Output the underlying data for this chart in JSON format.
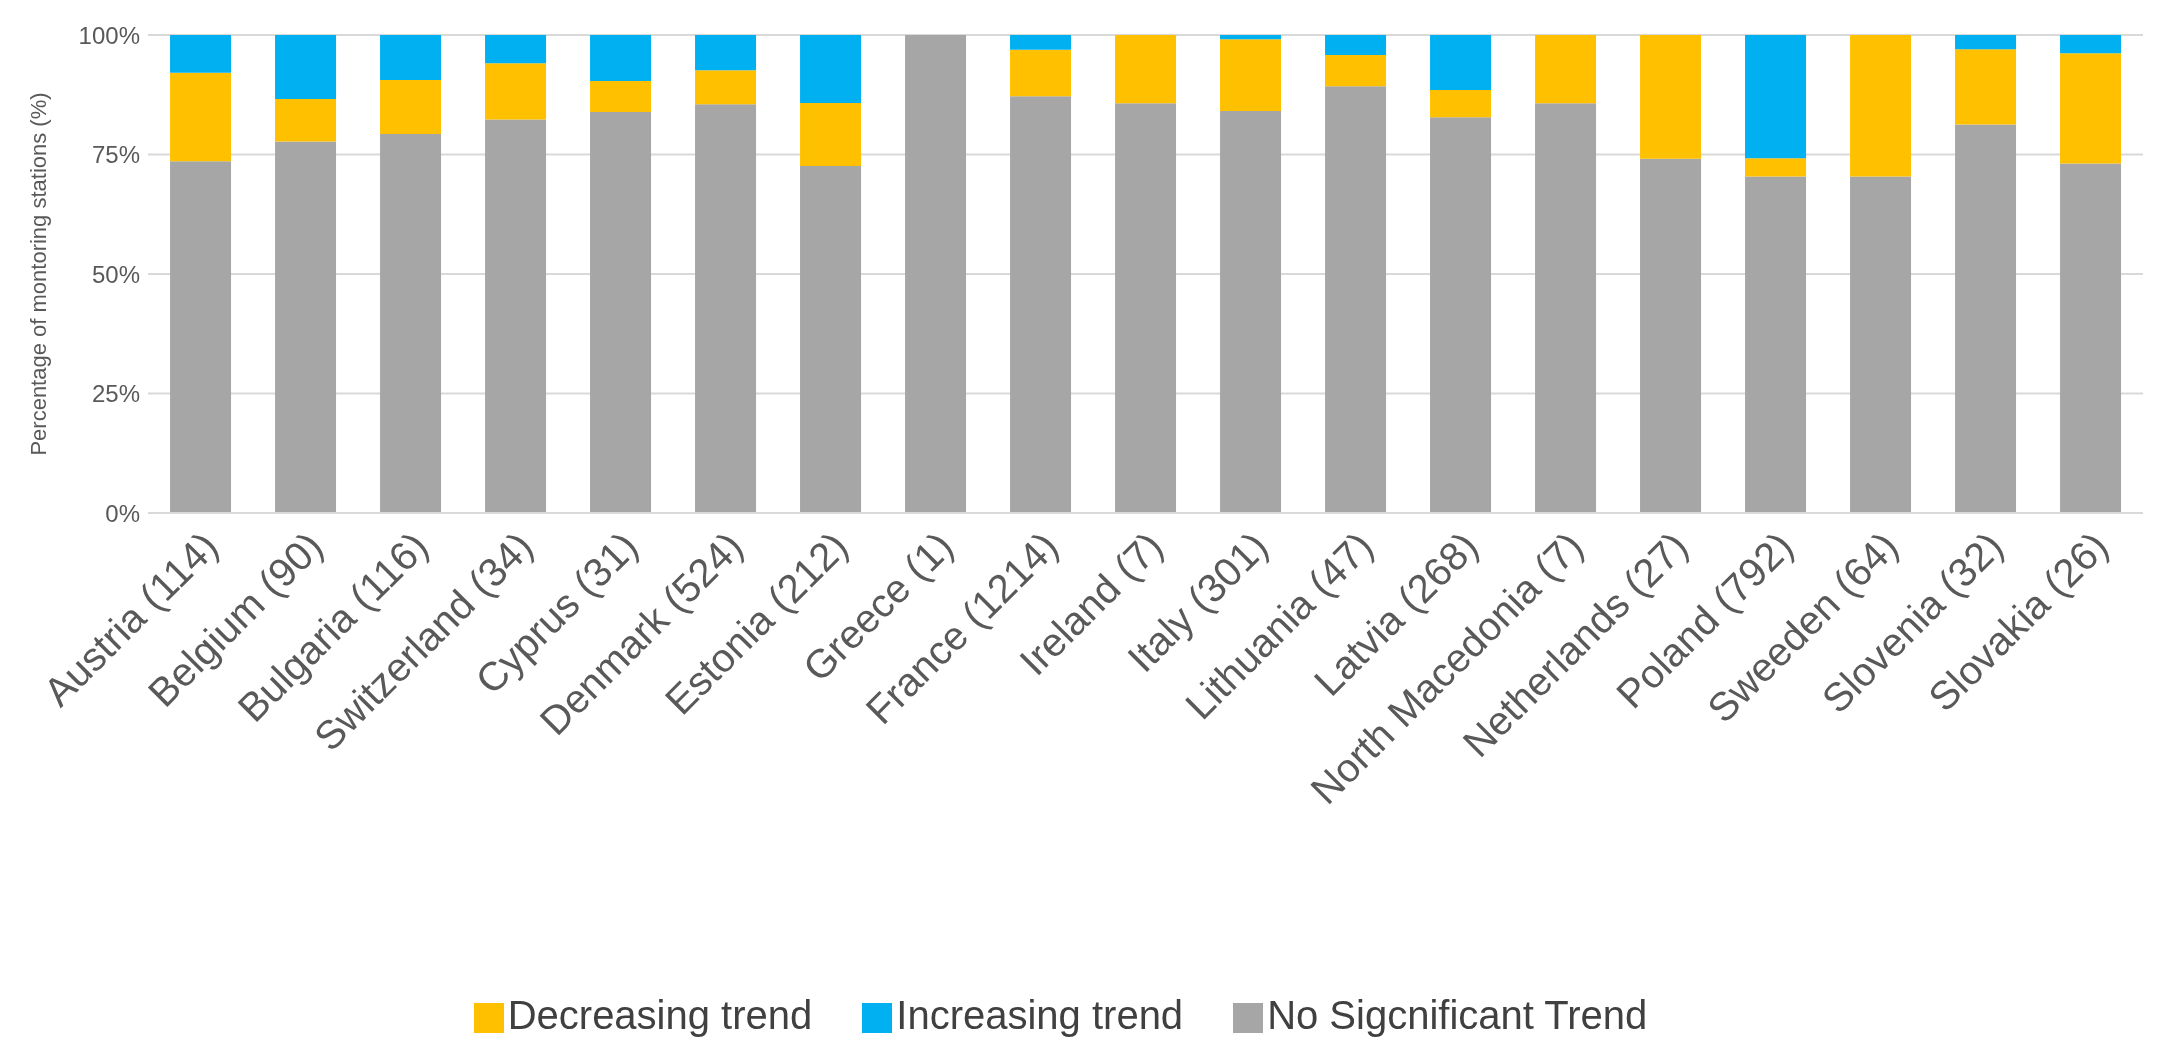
{
  "chart_data": {
    "type": "bar",
    "stacked": true,
    "ylabel": "Percentage of montoring stations (%)",
    "categories": [
      "Austria (114)",
      "Belgium (90)",
      "Bulgaria (116)",
      "Switzerland (34)",
      "Cyprus (31)",
      "Denmark (524)",
      "Estonia (212)",
      "Greece (1)",
      "France (1214)",
      "Ireland (7)",
      "Italy (301)",
      "Lithuania (47)",
      "Latvia (268)",
      "North Macedonia (7)",
      "Netherlands (27)",
      "Poland (792)",
      "Sweeden (64)",
      "Slovenia (32)",
      "Slovakia (26)"
    ],
    "series": [
      {
        "name": "No Sigcnificant Trend",
        "color": "#a6a6a6",
        "values": [
          73.6,
          77.7,
          79.3,
          82.3,
          83.9,
          85.5,
          72.6,
          100,
          87.2,
          85.7,
          84.1,
          89.3,
          82.8,
          85.7,
          74.1,
          70.4,
          70.4,
          81.3,
          73.1
        ]
      },
      {
        "name": "Decreasing trend",
        "color": "#ffc000",
        "values": [
          18.5,
          8.9,
          11.3,
          11.8,
          6.5,
          7.1,
          13.2,
          0,
          9.7,
          14.3,
          15.0,
          6.5,
          5.7,
          14.3,
          25.9,
          3.8,
          29.6,
          15.7,
          23.1
        ]
      },
      {
        "name": "Increasing trend",
        "color": "#00b0f0",
        "values": [
          7.9,
          13.4,
          9.4,
          5.9,
          9.6,
          7.4,
          14.2,
          0,
          3.1,
          0,
          0.9,
          4.2,
          11.5,
          0,
          0,
          25.8,
          0,
          3.0,
          3.8
        ]
      }
    ],
    "ylim": [
      0,
      100
    ],
    "yticks": [
      {
        "value": 0,
        "label": "0%"
      },
      {
        "value": 25,
        "label": "25%"
      },
      {
        "value": 50,
        "label": "50%"
      },
      {
        "value": 75,
        "label": "75%"
      },
      {
        "value": 100,
        "label": "100%"
      }
    ],
    "grid": "y",
    "legend": "bottom"
  }
}
